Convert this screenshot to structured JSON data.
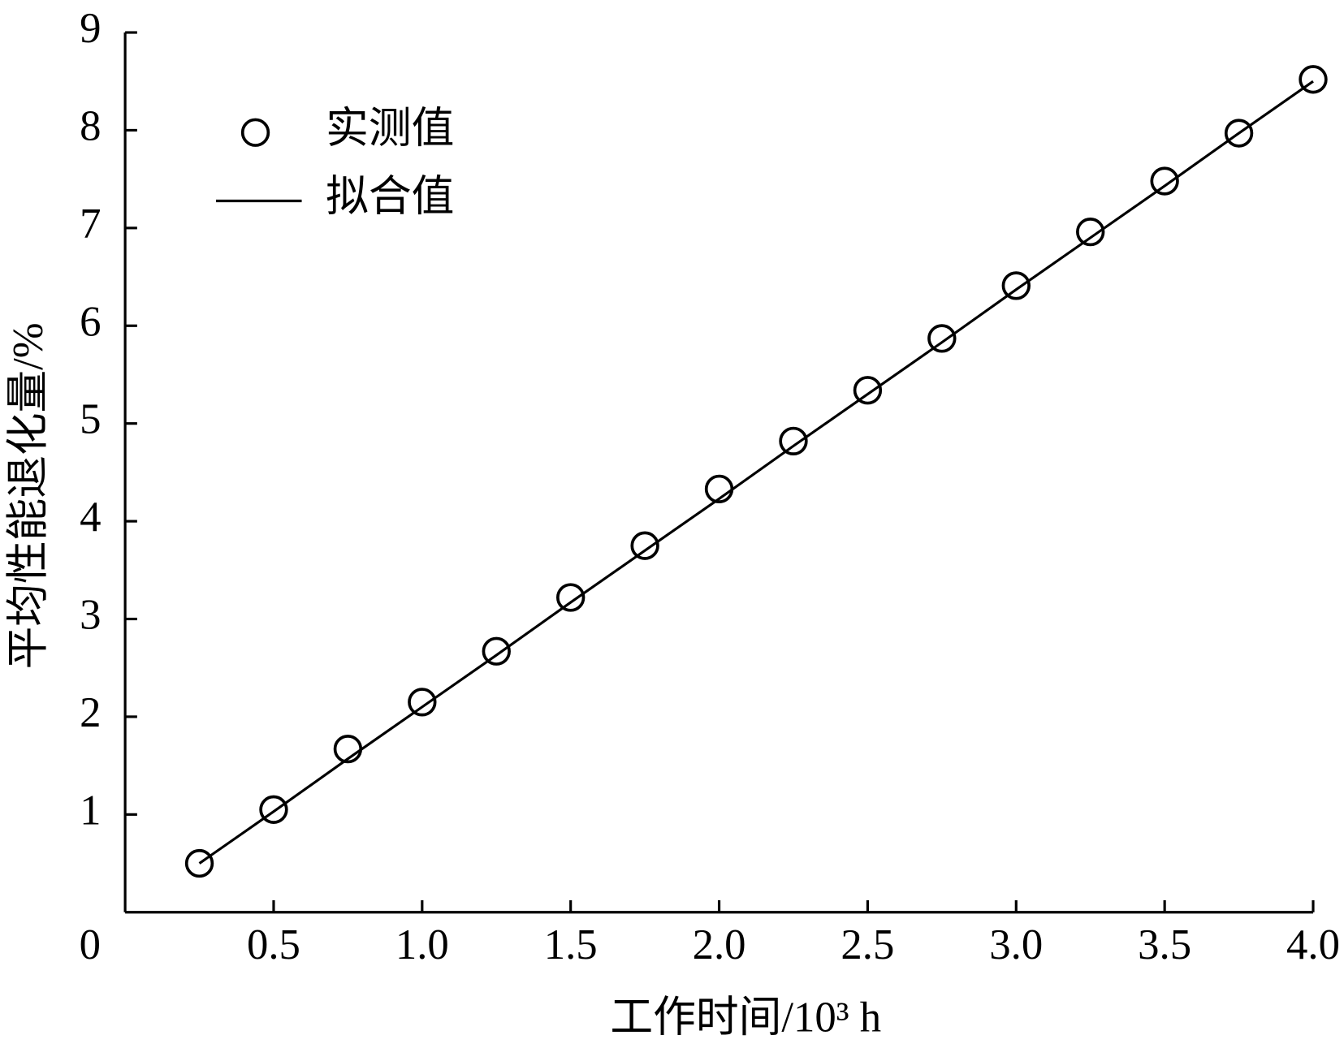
{
  "chart_data": {
    "type": "scatter",
    "x_label": "工作时间/10³ h",
    "y_label": "平均性能退化量/%",
    "x": [
      0.25,
      0.5,
      0.75,
      1.0,
      1.25,
      1.5,
      1.75,
      2.0,
      2.25,
      2.5,
      2.75,
      3.0,
      3.25,
      3.5,
      3.75,
      4.0
    ],
    "series": [
      {
        "name": "实测值",
        "color": "#000000",
        "marker": "circle",
        "values": [
          0.5,
          1.05,
          1.67,
          2.15,
          2.67,
          3.22,
          3.75,
          4.33,
          4.82,
          5.34,
          5.87,
          6.41,
          6.96,
          7.48,
          7.97,
          8.52
        ]
      },
      {
        "name": "拟合值",
        "color": "#000000",
        "marker": "line",
        "values": [
          0.5,
          1.03,
          1.57,
          2.1,
          2.63,
          3.17,
          3.7,
          4.23,
          4.77,
          5.3,
          5.83,
          6.37,
          6.9,
          7.43,
          7.97,
          8.5
        ]
      }
    ],
    "xlim": [
      0,
      4.0
    ],
    "xticks": [
      0.5,
      {
        "value": 1,
        "label": "1.0"
      },
      1.5,
      {
        "value": 2,
        "label": "2.0"
      },
      2.5,
      {
        "value": 3,
        "label": "3.0"
      },
      3.5,
      {
        "value": 4,
        "label": "4.0"
      }
    ],
    "ylim": [
      0,
      9
    ],
    "yticks": [
      0,
      1,
      2,
      3,
      4,
      5,
      6,
      7,
      8,
      9
    ],
    "grid": false,
    "legend": "upper left"
  }
}
